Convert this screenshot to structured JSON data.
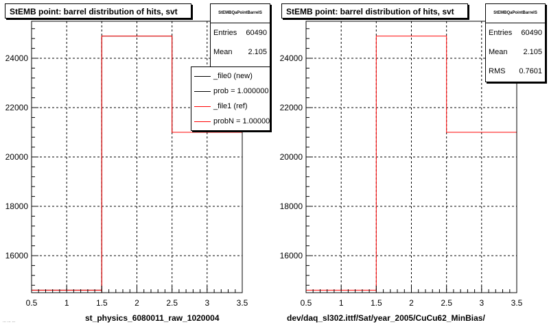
{
  "panels": [
    {
      "title": "StEMB point: barrel distribution of hits, svt",
      "stats": {
        "name": "StEMBQaPointBarrelS",
        "rows": [
          {
            "label": "Entries",
            "value": "60490"
          },
          {
            "label": "Mean",
            "value": "2.105"
          }
        ]
      },
      "legend": [
        {
          "label": "_file0 (new)",
          "color": "#000000"
        },
        {
          "label": "prob = 1.000000",
          "color": "#000000"
        },
        {
          "label": "_file1 (ref)",
          "color": "#ff0000"
        },
        {
          "label": "probN = 1.000000",
          "color": "#ff0000"
        }
      ],
      "xtitle": "st_physics_6080011_raw_1020004",
      "footnote": "... ... ..."
    },
    {
      "title": "StEMB point: barrel distribution of hits, svt",
      "stats": {
        "name": "StEMBQaPointBarrelS",
        "rows": [
          {
            "label": "Entries",
            "value": "60490"
          },
          {
            "label": "Mean",
            "value": "2.105"
          },
          {
            "label": "RMS",
            "value": "0.7601"
          }
        ]
      },
      "legend": [],
      "xtitle": "dev/daq_sl302.ittf/Sat/year_2005/CuCu62_MinBias/",
      "footnote": ""
    }
  ],
  "chart_data": [
    {
      "type": "bar",
      "title": "StEMB point: barrel distribution of hits, svt",
      "xlabel": "st_physics_6080011_raw_1020004",
      "ylabel": "",
      "xlim": [
        0.5,
        3.5
      ],
      "ylim": [
        14500,
        25500
      ],
      "x_ticks": [
        0.5,
        1,
        1.5,
        2,
        2.5,
        3,
        3.5
      ],
      "x_tick_labels": [
        "0.5",
        "1",
        "1.5",
        "2",
        "2.5",
        "3",
        "3.5"
      ],
      "y_ticks": [
        16000,
        18000,
        20000,
        22000,
        24000
      ],
      "y_tick_labels": [
        "16000",
        "18000",
        "20000",
        "22000",
        "24000"
      ],
      "grid": true,
      "bin_edges": [
        0.5,
        1.5,
        2.5,
        3.5
      ],
      "series": [
        {
          "name": "_file0 (new)",
          "color": "#000000",
          "values": [
            14600,
            24900,
            21000
          ]
        },
        {
          "name": "_file1 (ref)",
          "color": "#ff0000",
          "values": [
            14600,
            24900,
            21000
          ]
        }
      ],
      "legend_position": "top-right"
    },
    {
      "type": "bar",
      "title": "StEMB point: barrel distribution of hits, svt",
      "xlabel": "dev/daq_sl302.ittf/Sat/year_2005/CuCu62_MinBias/",
      "ylabel": "",
      "xlim": [
        0.5,
        3.5
      ],
      "ylim": [
        14500,
        25500
      ],
      "x_ticks": [
        0.5,
        1,
        1.5,
        2,
        2.5,
        3,
        3.5
      ],
      "x_tick_labels": [
        "0.5",
        "1",
        "1.5",
        "2",
        "2.5",
        "3",
        "3.5"
      ],
      "y_ticks": [
        16000,
        18000,
        20000,
        22000,
        24000
      ],
      "y_tick_labels": [
        "16000",
        "18000",
        "20000",
        "22000",
        "24000"
      ],
      "grid": true,
      "bin_edges": [
        0.5,
        1.5,
        2.5,
        3.5
      ],
      "series": [
        {
          "color": "#ff0000",
          "values": [
            14600,
            24900,
            21000
          ]
        }
      ]
    }
  ]
}
